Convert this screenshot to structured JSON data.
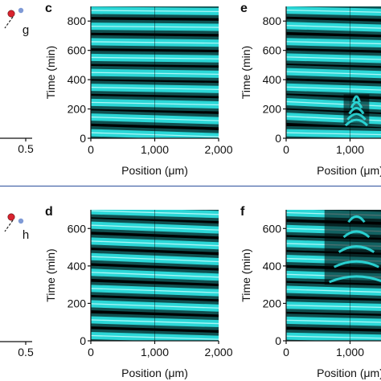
{
  "colors": {
    "stripe": "#2ee6e6",
    "background": "#000000",
    "divider": "#2a4f9b",
    "red_point": "#d9232e",
    "blue_point": "#7f9ad6"
  },
  "chart_data": [
    {
      "type": "scatter",
      "panel": "left-top-partial",
      "annotation": "g",
      "x_tick_labels": [
        "0.5"
      ],
      "points": [
        {
          "color": "red"
        },
        {
          "color": "blue"
        }
      ]
    },
    {
      "type": "scatter",
      "panel": "left-bottom-partial",
      "annotation": "h",
      "x_tick_labels": [
        "0.5"
      ],
      "points": [
        {
          "color": "red"
        },
        {
          "color": "blue"
        }
      ]
    },
    {
      "type": "heatmap",
      "panel_label": "c",
      "xlabel": "Position (μm)",
      "ylabel": "Time (min)",
      "xlim": [
        0,
        2000
      ],
      "ylim": [
        0,
        900
      ],
      "x_ticks": [
        0,
        1000,
        2000
      ],
      "x_tick_labels": [
        "0",
        "1,000",
        "2,000"
      ],
      "y_ticks": [
        0,
        200,
        400,
        600,
        800
      ],
      "y_tick_labels": [
        "0",
        "200",
        "400",
        "600",
        "800"
      ],
      "stripe_times_left": [
        38,
        145,
        245,
        348,
        449,
        552,
        659,
        765,
        873
      ],
      "stripe_times_right": [
        10,
        120,
        228,
        333,
        437,
        542,
        649,
        757,
        865
      ],
      "disturbed": []
    },
    {
      "type": "heatmap",
      "panel_label": "e",
      "xlabel": "Position (μm)",
      "ylabel": "Time (min)",
      "xlim": [
        0,
        2000
      ],
      "ylim": [
        0,
        900
      ],
      "x_ticks": [
        0,
        1000
      ],
      "x_tick_labels": [
        "0",
        "1,000"
      ],
      "y_ticks": [
        0,
        200,
        400,
        600,
        800
      ],
      "y_tick_labels": [
        "0",
        "200",
        "400",
        "600",
        "800"
      ],
      "stripe_times_left": [
        38,
        150,
        250,
        350,
        455,
        555,
        660,
        770,
        875
      ],
      "stripe_times_right": [
        20,
        110,
        210,
        322,
        428,
        532,
        640,
        745,
        855
      ],
      "disturbed": [
        {
          "x": [
            900,
            1300
          ],
          "y": [
            100,
            300
          ]
        }
      ]
    },
    {
      "type": "heatmap",
      "panel_label": "d",
      "xlabel": "Position (μm)",
      "ylabel": "Time (min)",
      "xlim": [
        0,
        2000
      ],
      "ylim": [
        0,
        700
      ],
      "x_ticks": [
        0,
        1000,
        2000
      ],
      "x_tick_labels": [
        "0",
        "1,000",
        "2,000"
      ],
      "y_ticks": [
        0,
        200,
        400,
        600
      ],
      "y_tick_labels": [
        "0",
        "200",
        "400",
        "600"
      ],
      "stripe_times_left": [
        28,
        112,
        198,
        280,
        366,
        450,
        533,
        618,
        695
      ],
      "stripe_times_right": [
        8,
        92,
        175,
        257,
        340,
        423,
        508,
        592,
        675
      ],
      "disturbed": []
    },
    {
      "type": "heatmap",
      "panel_label": "f",
      "xlabel": "Position (μm)",
      "ylabel": "Time (min)",
      "xlim": [
        0,
        2000
      ],
      "ylim": [
        0,
        700
      ],
      "x_ticks": [
        0,
        1000
      ],
      "x_tick_labels": [
        "0",
        "1,000"
      ],
      "y_ticks": [
        0,
        200,
        400,
        600
      ],
      "y_tick_labels": [
        "0",
        "200",
        "400",
        "600"
      ],
      "stripe_times_left": [
        25,
        110,
        190,
        275,
        355,
        440,
        520,
        600,
        685
      ],
      "stripe_times_right": [
        10,
        95,
        175,
        255,
        335,
        420,
        500,
        580,
        665
      ],
      "disturbed": [
        {
          "x": [
            600,
            1600
          ],
          "y": [
            300,
            700
          ]
        }
      ]
    }
  ]
}
